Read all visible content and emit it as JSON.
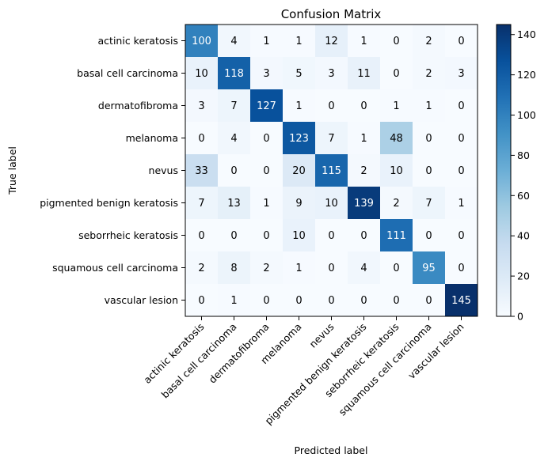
{
  "chart_data": {
    "type": "heatmap",
    "title": "Confusion Matrix",
    "xlabel": "Predicted label",
    "ylabel": "True label",
    "labels": [
      "actinic keratosis",
      "basal cell carcinoma",
      "dermatofibroma",
      "melanoma",
      "nevus",
      "pigmented benign keratosis",
      "seborrheic keratosis",
      "squamous cell carcinoma",
      "vascular lesion"
    ],
    "matrix": [
      [
        100,
        4,
        1,
        1,
        12,
        1,
        0,
        2,
        0
      ],
      [
        10,
        118,
        3,
        5,
        3,
        11,
        0,
        2,
        3
      ],
      [
        3,
        7,
        127,
        1,
        0,
        0,
        1,
        1,
        0
      ],
      [
        0,
        4,
        0,
        123,
        7,
        1,
        48,
        0,
        0
      ],
      [
        33,
        0,
        0,
        20,
        115,
        2,
        10,
        0,
        0
      ],
      [
        7,
        13,
        1,
        9,
        10,
        139,
        2,
        7,
        1
      ],
      [
        0,
        0,
        0,
        10,
        0,
        0,
        111,
        0,
        0
      ],
      [
        2,
        8,
        2,
        1,
        0,
        4,
        0,
        95,
        0
      ],
      [
        0,
        1,
        0,
        0,
        0,
        0,
        0,
        0,
        145
      ]
    ],
    "colormap": "Blues",
    "colorbar": {
      "range": [
        0,
        145
      ],
      "ticks": [
        0,
        20,
        40,
        60,
        80,
        100,
        120,
        140
      ]
    },
    "grid": false
  }
}
